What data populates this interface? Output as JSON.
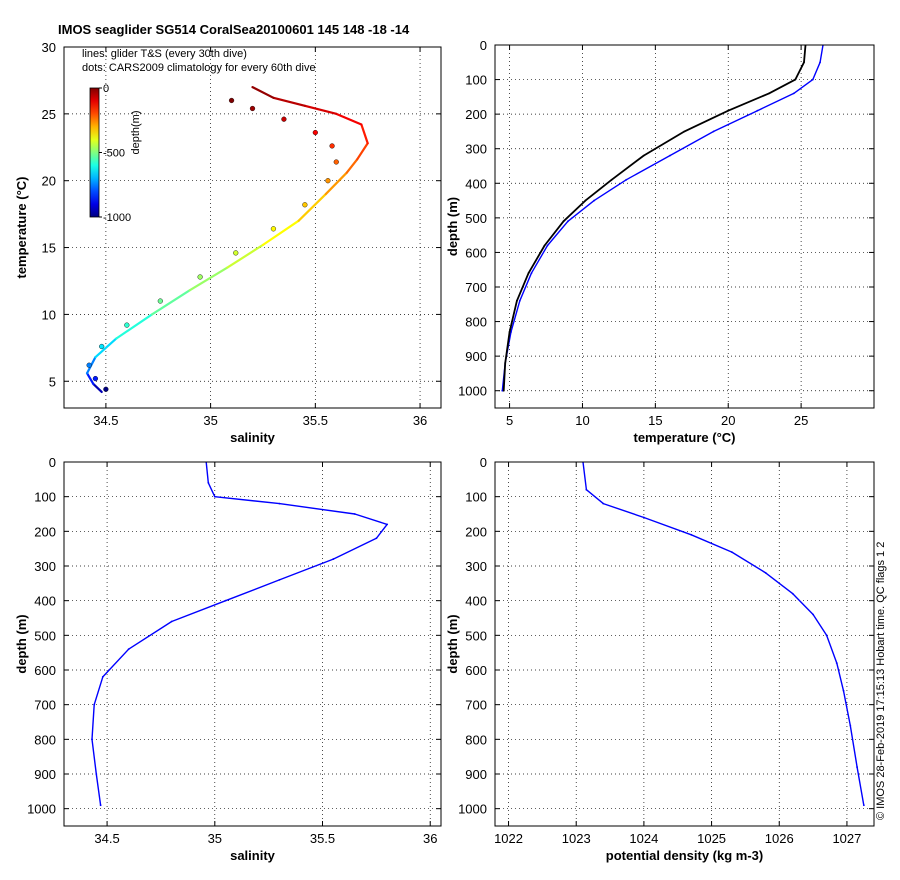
{
  "title": "IMOS seaglider SG514 CoralSea20100601 145  148  -18  -14",
  "side_note": "© IMOS 28-Feb-2019 17:15:13 Hobart time. QC flags 1  2",
  "legend_lines": [
    "lines: glider T&S (every 30th dive)",
    "dots: CARS2009 climatology for every 60th dive"
  ],
  "colorbar": {
    "label": "depth(m)",
    "ticks": [
      "0",
      "-500",
      "-1000"
    ],
    "range": [
      -1000,
      0
    ]
  },
  "colors": {
    "glider": "#0000ff",
    "climatology": "#000000",
    "grid": "#000000"
  },
  "chart_data": [
    {
      "id": "ts",
      "type": "scatter",
      "title": "IMOS seaglider SG514 CoralSea20100601 145  148  -18  -14",
      "xlabel": "salinity",
      "ylabel": "temperature (°C)",
      "xlim": [
        34.3,
        36.1
      ],
      "ylim": [
        3,
        30
      ],
      "xticks": [
        "34.5",
        "35",
        "35.5",
        "36"
      ],
      "xtick_values": [
        34.5,
        35,
        35.5,
        36
      ],
      "yticks": [
        "5",
        "10",
        "15",
        "20",
        "25",
        "30"
      ],
      "ytick_values": [
        5,
        10,
        15,
        20,
        25,
        30
      ],
      "grid": true,
      "series": [
        {
          "name": "lines: glider T&S (every 30th dive)",
          "style": "line",
          "x": [
            34.48,
            34.44,
            34.41,
            34.45,
            34.55,
            34.72,
            34.9,
            35.08,
            35.25,
            35.42,
            35.55,
            35.65,
            35.7,
            35.75,
            35.72,
            35.6,
            35.45,
            35.3,
            35.2
          ],
          "y": [
            4.2,
            4.8,
            5.6,
            6.8,
            8.2,
            10.0,
            11.8,
            13.5,
            15.2,
            17.0,
            19.0,
            20.6,
            21.6,
            22.8,
            24.2,
            25.0,
            25.6,
            26.2,
            27.0
          ],
          "depth": [
            -1000,
            -900,
            -800,
            -700,
            -620,
            -560,
            -500,
            -450,
            -400,
            -350,
            -300,
            -250,
            -210,
            -170,
            -130,
            -100,
            -70,
            -40,
            0
          ]
        },
        {
          "name": "dots: CARS2009 climatology for every 60th dive",
          "style": "dots",
          "x": [
            34.5,
            34.45,
            34.42,
            34.48,
            34.6,
            34.76,
            34.95,
            35.12,
            35.3,
            35.45,
            35.56,
            35.6,
            35.58,
            35.5,
            35.35,
            35.2,
            35.1
          ],
          "y": [
            4.4,
            5.2,
            6.2,
            7.6,
            9.2,
            11.0,
            12.8,
            14.6,
            16.4,
            18.2,
            20.0,
            21.4,
            22.6,
            23.6,
            24.6,
            25.4,
            26.0
          ],
          "depth": [
            -1000,
            -850,
            -750,
            -650,
            -580,
            -520,
            -470,
            -420,
            -370,
            -320,
            -270,
            -220,
            -170,
            -120,
            -70,
            -30,
            0
          ]
        }
      ]
    },
    {
      "id": "temp_depth",
      "type": "line",
      "xlabel": "temperature (°C)",
      "ylabel": "depth (m)",
      "xlim": [
        4,
        30
      ],
      "ylim": [
        1050,
        0
      ],
      "xticks": [
        "5",
        "10",
        "15",
        "20",
        "25"
      ],
      "xtick_values": [
        5,
        10,
        15,
        20,
        25
      ],
      "yticks": [
        "0",
        "100",
        "200",
        "300",
        "400",
        "500",
        "600",
        "700",
        "800",
        "900",
        "1000"
      ],
      "ytick_values": [
        0,
        100,
        200,
        300,
        400,
        500,
        600,
        700,
        800,
        900,
        1000
      ],
      "grid": true,
      "series": [
        {
          "name": "",
          "color": "#0000ff",
          "x": [
            26.5,
            26.3,
            25.8,
            24.5,
            22.0,
            19.0,
            16.0,
            13.0,
            10.8,
            9.0,
            7.6,
            6.5,
            5.7,
            5.1,
            4.7,
            4.5
          ],
          "y": [
            0,
            50,
            100,
            140,
            190,
            250,
            320,
            390,
            450,
            510,
            580,
            660,
            740,
            830,
            920,
            1000
          ]
        },
        {
          "name": "",
          "color": "#000000",
          "x": [
            25.3,
            25.2,
            24.6,
            22.8,
            20.0,
            17.0,
            14.2,
            12.0,
            10.2,
            8.7,
            7.4,
            6.3,
            5.5,
            5.0,
            4.7,
            4.6
          ],
          "y": [
            0,
            50,
            100,
            140,
            190,
            250,
            320,
            390,
            450,
            510,
            580,
            660,
            740,
            830,
            920,
            1000
          ]
        }
      ]
    },
    {
      "id": "sal_depth",
      "type": "line",
      "xlabel": "salinity",
      "ylabel": "depth (m)",
      "xlim": [
        34.3,
        36.05
      ],
      "ylim": [
        1050,
        0
      ],
      "xticks": [
        "34.5",
        "35",
        "35.5",
        "36"
      ],
      "xtick_values": [
        34.5,
        35,
        35.5,
        36
      ],
      "yticks": [
        "0",
        "100",
        "200",
        "300",
        "400",
        "500",
        "600",
        "700",
        "800",
        "900",
        "1000"
      ],
      "ytick_values": [
        0,
        100,
        200,
        300,
        400,
        500,
        600,
        700,
        800,
        900,
        1000
      ],
      "grid": true,
      "series": [
        {
          "name": "",
          "color": "#0000ff",
          "x": [
            34.96,
            34.97,
            35.0,
            35.3,
            35.65,
            35.8,
            35.75,
            35.55,
            35.3,
            35.05,
            34.8,
            34.6,
            34.48,
            34.44,
            34.43,
            34.45,
            34.47
          ],
          "y": [
            0,
            60,
            100,
            120,
            150,
            180,
            220,
            280,
            340,
            400,
            460,
            540,
            620,
            700,
            800,
            900,
            990
          ]
        }
      ]
    },
    {
      "id": "dens_depth",
      "type": "line",
      "xlabel": "potential density (kg m-3)",
      "ylabel": "depth (m)",
      "xlim": [
        1021.8,
        1027.4
      ],
      "ylim": [
        1050,
        0
      ],
      "xticks": [
        "1022",
        "1023",
        "1024",
        "1025",
        "1026",
        "1027"
      ],
      "xtick_values": [
        1022,
        1023,
        1024,
        1025,
        1026,
        1027
      ],
      "yticks": [
        "0",
        "100",
        "200",
        "300",
        "400",
        "500",
        "600",
        "700",
        "800",
        "900",
        "1000"
      ],
      "ytick_values": [
        0,
        100,
        200,
        300,
        400,
        500,
        600,
        700,
        800,
        900,
        1000
      ],
      "grid": true,
      "series": [
        {
          "name": "",
          "color": "#0000ff",
          "x": [
            1023.1,
            1023.15,
            1023.4,
            1024.0,
            1024.7,
            1025.3,
            1025.8,
            1026.2,
            1026.5,
            1026.7,
            1026.85,
            1026.95,
            1027.05,
            1027.15,
            1027.25
          ],
          "y": [
            0,
            80,
            120,
            160,
            210,
            260,
            320,
            380,
            440,
            500,
            580,
            660,
            760,
            880,
            990
          ]
        }
      ]
    }
  ]
}
